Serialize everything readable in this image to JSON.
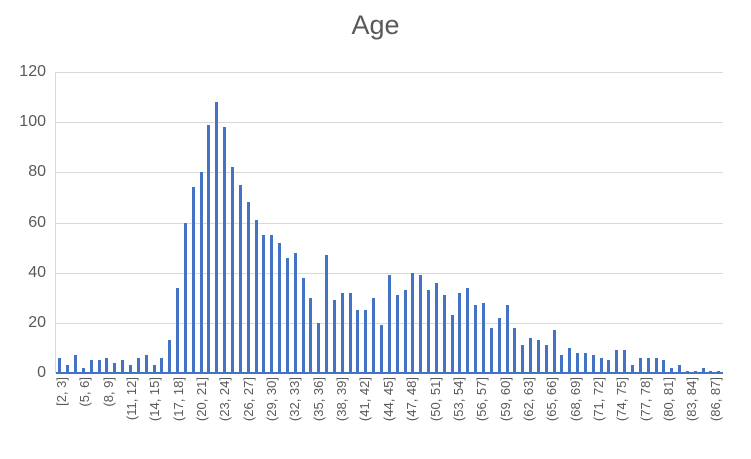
{
  "title": "Age",
  "chart_data": {
    "type": "bar",
    "title": "Age",
    "xlabel": "",
    "ylabel": "",
    "ylim": [
      0,
      120
    ],
    "y_ticks": [
      0,
      20,
      40,
      60,
      80,
      100,
      120
    ],
    "grid": true,
    "legend": false,
    "bar_color": "#4472c4",
    "gridline_color": "#d9d9d9",
    "axis_line_color": "#4472c4",
    "text_color": "#595959",
    "bin_width": 1,
    "x_tick_interval": 3,
    "x_tick_labels": [
      "[2, 3]",
      "(5, 6]",
      "(8, 9]",
      "(11, 12]",
      "(14, 15]",
      "(17, 18]",
      "(20, 21]",
      "(23, 24]",
      "(26, 27]",
      "(29, 30]",
      "(32, 33]",
      "(35, 36]",
      "(38, 39]",
      "(41, 42]",
      "(44, 45]",
      "(47, 48]",
      "(50, 51]",
      "(53, 54]",
      "(56, 57]",
      "(59, 60]",
      "(62, 63]",
      "(65, 66]",
      "(68, 69]",
      "(71, 72]",
      "(74, 75]",
      "(77, 78]",
      "(80, 81]",
      "(83, 84]",
      "(86, 87]"
    ],
    "values": [
      6,
      3,
      7,
      2,
      5,
      5,
      6,
      4,
      5,
      3,
      6,
      7,
      3,
      6,
      13,
      34,
      60,
      74,
      80,
      99,
      108,
      98,
      82,
      75,
      68,
      61,
      55,
      55,
      52,
      46,
      48,
      38,
      30,
      20,
      47,
      29,
      32,
      32,
      25,
      25,
      30,
      19,
      39,
      31,
      33,
      40,
      39,
      33,
      36,
      31,
      23,
      32,
      34,
      27,
      28,
      18,
      22,
      27,
      18,
      11,
      14,
      13,
      11,
      17,
      7,
      10,
      8,
      8,
      7,
      6,
      5,
      9,
      9,
      3,
      6,
      6,
      6,
      5,
      2,
      3,
      1,
      1,
      2,
      1,
      1
    ]
  }
}
